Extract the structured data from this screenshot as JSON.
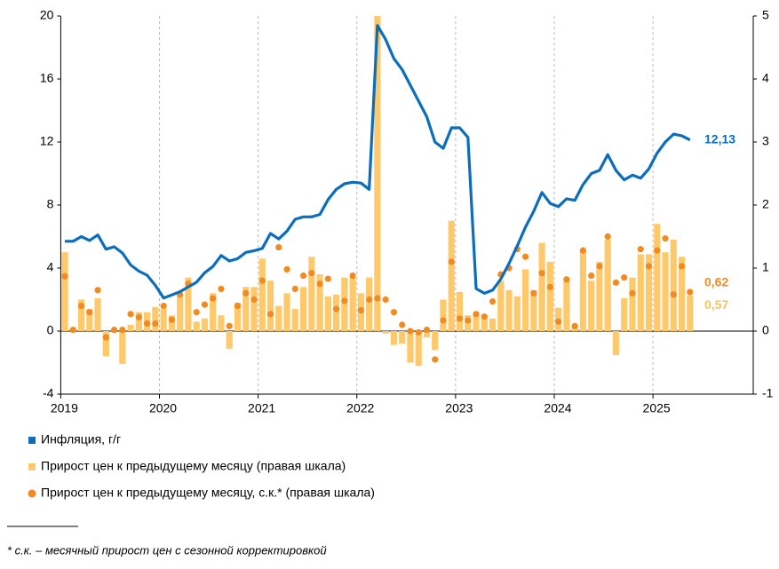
{
  "chart_data": {
    "type": "combo",
    "categories": [
      "2019",
      null,
      null,
      null,
      null,
      null,
      null,
      null,
      null,
      null,
      null,
      null,
      "2020",
      null,
      null,
      null,
      null,
      null,
      null,
      null,
      null,
      null,
      null,
      null,
      "2021",
      null,
      null,
      null,
      null,
      null,
      null,
      null,
      null,
      null,
      null,
      null,
      "2022",
      null,
      null,
      null,
      null,
      null,
      null,
      null,
      null,
      null,
      null,
      null,
      "2023",
      null,
      null,
      null,
      null,
      null,
      null,
      null,
      null,
      null,
      null,
      null,
      "2024",
      null,
      null,
      null,
      null,
      null,
      null,
      null,
      null,
      null,
      null,
      null,
      "2025",
      null,
      null,
      null,
      null
    ],
    "ylim": [
      -4,
      20
    ],
    "yticks": [
      -4,
      0,
      4,
      8,
      12,
      16,
      20
    ],
    "y2lim": [
      -1,
      5
    ],
    "y2ticks": [
      -1,
      0,
      1,
      2,
      3,
      4,
      5
    ],
    "series": [
      {
        "name": "Прирост цен к предыдущему месяцу (правая шкала)",
        "type": "bar",
        "axis": "y2",
        "color": "#fdc96b",
        "last_label": "0,57",
        "label_color": "#f7c35a",
        "values": [
          1.25,
          0.05,
          0.5,
          0.35,
          0.52,
          -0.4,
          0.0,
          -0.52,
          0.1,
          0.3,
          0.3,
          0.38,
          0.35,
          0.25,
          0.55,
          0.85,
          0.15,
          0.2,
          0.6,
          0.25,
          -0.28,
          0.45,
          0.7,
          0.7,
          1.15,
          0.8,
          0.4,
          0.6,
          0.35,
          0.7,
          1.18,
          0.9,
          0.55,
          0.58,
          0.85,
          0.85,
          0.6,
          0.85,
          5.0,
          -0.04,
          -0.22,
          -0.2,
          -0.5,
          -0.55,
          -0.1,
          -0.3,
          0.5,
          1.75,
          0.62,
          0.25,
          0.25,
          0.25,
          0.2,
          0.8,
          0.65,
          0.55,
          0.98,
          0.65,
          1.4,
          1.1,
          0.37,
          0.8,
          0.08,
          1.28,
          0.8,
          1.1,
          1.45,
          -0.38,
          0.52,
          0.85,
          1.22,
          1.22,
          1.7,
          1.25,
          1.45,
          1.18,
          0.57
        ]
      },
      {
        "name": "Прирост цен к предыдущему месяцу, с.к.* (правая шкала)",
        "type": "scatter",
        "axis": "y2",
        "color": "#f28a1f",
        "last_label": "0,62",
        "label_color": "#f28a1f",
        "values": [
          0.87,
          0.02,
          0.4,
          0.3,
          0.65,
          -0.1,
          0.02,
          0.02,
          0.27,
          0.22,
          0.12,
          0.12,
          0.4,
          0.18,
          0.58,
          0.75,
          0.3,
          0.42,
          0.52,
          0.67,
          0.08,
          0.4,
          0.6,
          0.5,
          0.8,
          0.27,
          1.33,
          0.98,
          0.67,
          0.88,
          0.92,
          0.75,
          0.83,
          0.35,
          0.48,
          0.88,
          0.33,
          0.5,
          0.52,
          0.5,
          0.3,
          0.1,
          0.0,
          -0.02,
          0.02,
          -0.45,
          0.17,
          1.1,
          0.2,
          0.17,
          0.27,
          0.23,
          0.47,
          0.9,
          1.0,
          1.3,
          1.18,
          0.6,
          0.92,
          0.7,
          0.15,
          0.82,
          0.08,
          1.28,
          0.88,
          1.03,
          1.5,
          0.77,
          0.85,
          0.6,
          1.3,
          1.03,
          1.28,
          1.47,
          0.58,
          1.03,
          0.62
        ]
      },
      {
        "name": "Инфляция, г/г",
        "type": "line",
        "color": "#0a6ebd",
        "last_label": "12,13",
        "label_color": "#0a6ebd",
        "values": [
          5.7,
          5.7,
          6.0,
          5.75,
          6.1,
          5.2,
          5.35,
          4.95,
          4.2,
          3.8,
          3.55,
          2.9,
          2.1,
          2.3,
          2.5,
          2.8,
          3.1,
          3.7,
          4.1,
          4.8,
          4.45,
          4.6,
          5.0,
          5.1,
          5.25,
          6.2,
          5.85,
          6.35,
          7.1,
          7.25,
          7.25,
          7.4,
          8.35,
          9.0,
          9.35,
          9.45,
          9.4,
          9.0,
          19.4,
          18.5,
          17.3,
          16.6,
          15.6,
          14.6,
          13.6,
          12.0,
          11.6,
          12.9,
          12.9,
          12.3,
          2.7,
          2.4,
          2.6,
          3.3,
          4.3,
          5.4,
          6.6,
          7.6,
          8.8,
          8.1,
          7.9,
          8.4,
          8.3,
          9.3,
          10.0,
          10.2,
          11.2,
          10.2,
          9.6,
          9.9,
          9.7,
          10.3,
          11.3,
          12.0,
          12.5,
          12.4,
          12.13
        ]
      }
    ],
    "legend_order": [
      2,
      0,
      1
    ],
    "footnote": "* с.к. – месячный прирост цен с сезонной корректировкой"
  }
}
